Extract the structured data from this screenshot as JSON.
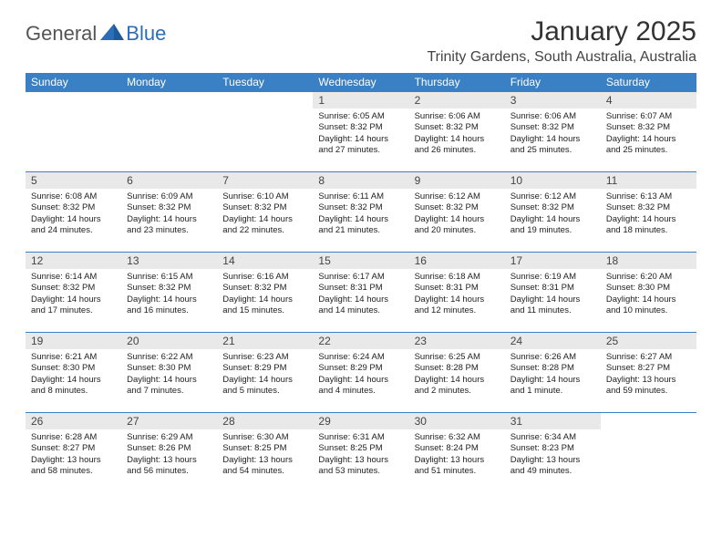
{
  "brand": {
    "general": "General",
    "blue": "Blue"
  },
  "title": "January 2025",
  "location": "Trinity Gardens, South Australia, Australia",
  "colors": {
    "header_bg": "#3a80c4",
    "header_text": "#ffffff",
    "daynum_bg": "#e9e9e9",
    "cell_border": "#3a80c4",
    "brand_blue": "#2a6db8",
    "brand_gray": "#555555"
  },
  "weekdays": [
    "Sunday",
    "Monday",
    "Tuesday",
    "Wednesday",
    "Thursday",
    "Friday",
    "Saturday"
  ],
  "first_day_index": 3,
  "days": [
    {
      "n": 1,
      "sunrise": "6:05 AM",
      "sunset": "8:32 PM",
      "daylight": "14 hours and 27 minutes."
    },
    {
      "n": 2,
      "sunrise": "6:06 AM",
      "sunset": "8:32 PM",
      "daylight": "14 hours and 26 minutes."
    },
    {
      "n": 3,
      "sunrise": "6:06 AM",
      "sunset": "8:32 PM",
      "daylight": "14 hours and 25 minutes."
    },
    {
      "n": 4,
      "sunrise": "6:07 AM",
      "sunset": "8:32 PM",
      "daylight": "14 hours and 25 minutes."
    },
    {
      "n": 5,
      "sunrise": "6:08 AM",
      "sunset": "8:32 PM",
      "daylight": "14 hours and 24 minutes."
    },
    {
      "n": 6,
      "sunrise": "6:09 AM",
      "sunset": "8:32 PM",
      "daylight": "14 hours and 23 minutes."
    },
    {
      "n": 7,
      "sunrise": "6:10 AM",
      "sunset": "8:32 PM",
      "daylight": "14 hours and 22 minutes."
    },
    {
      "n": 8,
      "sunrise": "6:11 AM",
      "sunset": "8:32 PM",
      "daylight": "14 hours and 21 minutes."
    },
    {
      "n": 9,
      "sunrise": "6:12 AM",
      "sunset": "8:32 PM",
      "daylight": "14 hours and 20 minutes."
    },
    {
      "n": 10,
      "sunrise": "6:12 AM",
      "sunset": "8:32 PM",
      "daylight": "14 hours and 19 minutes."
    },
    {
      "n": 11,
      "sunrise": "6:13 AM",
      "sunset": "8:32 PM",
      "daylight": "14 hours and 18 minutes."
    },
    {
      "n": 12,
      "sunrise": "6:14 AM",
      "sunset": "8:32 PM",
      "daylight": "14 hours and 17 minutes."
    },
    {
      "n": 13,
      "sunrise": "6:15 AM",
      "sunset": "8:32 PM",
      "daylight": "14 hours and 16 minutes."
    },
    {
      "n": 14,
      "sunrise": "6:16 AM",
      "sunset": "8:32 PM",
      "daylight": "14 hours and 15 minutes."
    },
    {
      "n": 15,
      "sunrise": "6:17 AM",
      "sunset": "8:31 PM",
      "daylight": "14 hours and 14 minutes."
    },
    {
      "n": 16,
      "sunrise": "6:18 AM",
      "sunset": "8:31 PM",
      "daylight": "14 hours and 12 minutes."
    },
    {
      "n": 17,
      "sunrise": "6:19 AM",
      "sunset": "8:31 PM",
      "daylight": "14 hours and 11 minutes."
    },
    {
      "n": 18,
      "sunrise": "6:20 AM",
      "sunset": "8:30 PM",
      "daylight": "14 hours and 10 minutes."
    },
    {
      "n": 19,
      "sunrise": "6:21 AM",
      "sunset": "8:30 PM",
      "daylight": "14 hours and 8 minutes."
    },
    {
      "n": 20,
      "sunrise": "6:22 AM",
      "sunset": "8:30 PM",
      "daylight": "14 hours and 7 minutes."
    },
    {
      "n": 21,
      "sunrise": "6:23 AM",
      "sunset": "8:29 PM",
      "daylight": "14 hours and 5 minutes."
    },
    {
      "n": 22,
      "sunrise": "6:24 AM",
      "sunset": "8:29 PM",
      "daylight": "14 hours and 4 minutes."
    },
    {
      "n": 23,
      "sunrise": "6:25 AM",
      "sunset": "8:28 PM",
      "daylight": "14 hours and 2 minutes."
    },
    {
      "n": 24,
      "sunrise": "6:26 AM",
      "sunset": "8:28 PM",
      "daylight": "14 hours and 1 minute."
    },
    {
      "n": 25,
      "sunrise": "6:27 AM",
      "sunset": "8:27 PM",
      "daylight": "13 hours and 59 minutes."
    },
    {
      "n": 26,
      "sunrise": "6:28 AM",
      "sunset": "8:27 PM",
      "daylight": "13 hours and 58 minutes."
    },
    {
      "n": 27,
      "sunrise": "6:29 AM",
      "sunset": "8:26 PM",
      "daylight": "13 hours and 56 minutes."
    },
    {
      "n": 28,
      "sunrise": "6:30 AM",
      "sunset": "8:25 PM",
      "daylight": "13 hours and 54 minutes."
    },
    {
      "n": 29,
      "sunrise": "6:31 AM",
      "sunset": "8:25 PM",
      "daylight": "13 hours and 53 minutes."
    },
    {
      "n": 30,
      "sunrise": "6:32 AM",
      "sunset": "8:24 PM",
      "daylight": "13 hours and 51 minutes."
    },
    {
      "n": 31,
      "sunrise": "6:34 AM",
      "sunset": "8:23 PM",
      "daylight": "13 hours and 49 minutes."
    }
  ],
  "labels": {
    "sunrise": "Sunrise:",
    "sunset": "Sunset:",
    "daylight": "Daylight:"
  }
}
